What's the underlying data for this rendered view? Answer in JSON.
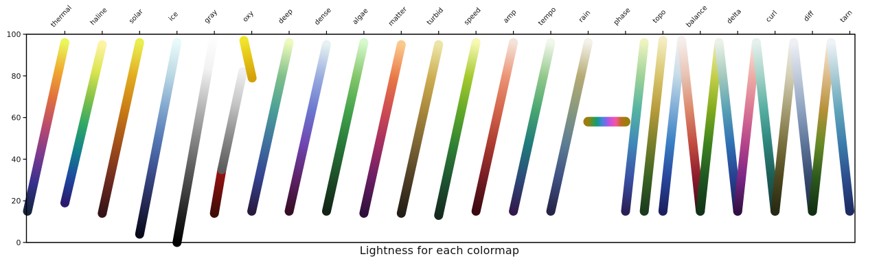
{
  "figure": {
    "title": "Lightness for each colormap"
  },
  "chart_data": {
    "type": "scatter",
    "title": "Lightness for each colormap",
    "xlabel": "",
    "ylabel": "",
    "ylim": [
      0,
      100
    ],
    "yticks": [
      0,
      20,
      40,
      60,
      80,
      100
    ],
    "grid": false,
    "legend": "none",
    "x_tick_labels_rotation_deg": 47,
    "note": "Each colormap drawn as a thick diagonal band: x spans its slot, y is lightness L*",
    "colormaps": [
      {
        "name": "thermal",
        "segments": [
          {
            "x": [
              0,
              1
            ],
            "L": [
              15,
              96
            ],
            "colors": [
              "#16253e",
              "#36318e",
              "#7a3a8e",
              "#b84a6f",
              "#e06f3f",
              "#f0a92f",
              "#e9f75b"
            ]
          }
        ]
      },
      {
        "name": "haline",
        "segments": [
          {
            "x": [
              0,
              1
            ],
            "L": [
              19,
              95
            ],
            "colors": [
              "#2a1a6e",
              "#1e4ba0",
              "#12838a",
              "#32a865",
              "#86c249",
              "#dbe64f",
              "#fdf3a5"
            ]
          }
        ]
      },
      {
        "name": "solar",
        "segments": [
          {
            "x": [
              0,
              1
            ],
            "L": [
              14,
              96
            ],
            "colors": [
              "#351317",
              "#702b20",
              "#a04f19",
              "#c87a15",
              "#e2ab20",
              "#e9ef4e"
            ]
          }
        ]
      },
      {
        "name": "ice",
        "segments": [
          {
            "x": [
              0,
              1
            ],
            "L": [
              4,
              96
            ],
            "colors": [
              "#080a1a",
              "#262a56",
              "#3d4f8e",
              "#5579b5",
              "#84a9cf",
              "#bcd9e4",
              "#e8fafa"
            ]
          }
        ]
      },
      {
        "name": "gray",
        "segments": [
          {
            "x": [
              0,
              1
            ],
            "L": [
              0,
              100
            ],
            "colors": [
              "#000000",
              "#2b2b2b",
              "#575757",
              "#878787",
              "#bcbcbc",
              "#f2f2f2",
              "#ffffff"
            ]
          }
        ]
      },
      {
        "name": "oxy",
        "segments": [
          {
            "x": [
              0,
              0.2
            ],
            "L": [
              14,
              35
            ],
            "colors": [
              "#400d06",
              "#6e0f0c",
              "#9e1410"
            ]
          },
          {
            "x": [
              0.2,
              0.76
            ],
            "L": [
              35,
              82
            ],
            "colors": [
              "#5c5c5c",
              "#8a8a8a",
              "#c4c4c4",
              "#efefef"
            ]
          },
          {
            "x": [
              0.79,
              1.01
            ],
            "L": [
              97,
              79
            ],
            "colors": [
              "#f0e52c",
              "#e3c214",
              "#d3a10b"
            ]
          }
        ]
      },
      {
        "name": "deep",
        "segments": [
          {
            "x": [
              0,
              1
            ],
            "L": [
              15,
              96
            ],
            "colors": [
              "#281a3e",
              "#35428f",
              "#40709f",
              "#4b9f98",
              "#80c08a",
              "#eefabd"
            ]
          }
        ]
      },
      {
        "name": "dense",
        "segments": [
          {
            "x": [
              0,
              1
            ],
            "L": [
              15,
              95
            ],
            "colors": [
              "#360e24",
              "#5e2268",
              "#7045b0",
              "#6b76cf",
              "#97abde",
              "#e6f1f1"
            ]
          }
        ]
      },
      {
        "name": "algae",
        "segments": [
          {
            "x": [
              0,
              1
            ],
            "L": [
              15,
              96
            ],
            "colors": [
              "#112414",
              "#1d4d28",
              "#28793a",
              "#44a44c",
              "#85c76c",
              "#d7f9cd"
            ]
          }
        ]
      },
      {
        "name": "matter",
        "segments": [
          {
            "x": [
              0,
              1
            ],
            "L": [
              14,
              95
            ],
            "colors": [
              "#2f0f3b",
              "#671e62",
              "#a02d63",
              "#cc4a52",
              "#e87747",
              "#fbc98c"
            ]
          }
        ]
      },
      {
        "name": "turbid",
        "segments": [
          {
            "x": [
              0,
              1
            ],
            "L": [
              14,
              95
            ],
            "colors": [
              "#231e16",
              "#4e3d25",
              "#7a6333",
              "#a6863c",
              "#ccad51",
              "#ece5a6"
            ]
          }
        ]
      },
      {
        "name": "speed",
        "segments": [
          {
            "x": [
              0,
              1
            ],
            "L": [
              13,
              96
            ],
            "colors": [
              "#152a1e",
              "#1d5331",
              "#2f8034",
              "#60a829",
              "#a5c92e",
              "#f7f9b2"
            ]
          }
        ]
      },
      {
        "name": "amp",
        "segments": [
          {
            "x": [
              0,
              1
            ],
            "L": [
              15,
              96
            ],
            "colors": [
              "#3c0911",
              "#761d25",
              "#ab3c30",
              "#d4654c",
              "#ec9476",
              "#f4e3da"
            ]
          }
        ]
      },
      {
        "name": "tempo",
        "segments": [
          {
            "x": [
              0,
              1
            ],
            "L": [
              15,
              96
            ],
            "colors": [
              "#31194c",
              "#2c4c7a",
              "#207b7b",
              "#48a671",
              "#93c98b",
              "#f2f7ec"
            ]
          }
        ]
      },
      {
        "name": "rain",
        "segments": [
          {
            "x": [
              0,
              1
            ],
            "L": [
              15,
              96
            ],
            "colors": [
              "#262448",
              "#3f5182",
              "#5e7d94",
              "#87997e",
              "#b6ab74",
              "#f3f1e9"
            ]
          }
        ]
      },
      {
        "name": "phase",
        "segments": [
          {
            "x": [
              0,
              1
            ],
            "L": [
              58,
              58
            ],
            "width": 14,
            "colors": [
              "#9c7d0d",
              "#44993a",
              "#11998a",
              "#4485dd",
              "#9061e8",
              "#dd4ed0",
              "#f2589a",
              "#c06a20",
              "#9c7d0d"
            ]
          }
        ]
      },
      {
        "name": "topo",
        "segments": [
          {
            "x": [
              0,
              0.5
            ],
            "L": [
              15,
              96
            ],
            "colors": [
              "#2a2058",
              "#3a51a5",
              "#4088ba",
              "#54b3a2",
              "#9ed398",
              "#eef3c0"
            ]
          },
          {
            "x": [
              0.5,
              1
            ],
            "L": [
              15,
              97
            ],
            "colors": [
              "#1b3a1e",
              "#3a6322",
              "#7a7f2a",
              "#b89c3c",
              "#d9c66e",
              "#f4edc2"
            ]
          }
        ]
      },
      {
        "name": "balance",
        "segments": [
          {
            "x": [
              0,
              0.5
            ],
            "L": [
              15,
              97
            ],
            "colors": [
              "#1c2160",
              "#28479c",
              "#3a7fc4",
              "#7eadd6",
              "#c8dce8",
              "#f2f4f5"
            ]
          },
          {
            "x": [
              0.5,
              1
            ],
            "L": [
              97,
              15
            ],
            "colors": [
              "#f5efed",
              "#e8c4b4",
              "#dc8a6d",
              "#c24e41",
              "#8c1b2c",
              "#400a16"
            ]
          }
        ]
      },
      {
        "name": "delta",
        "segments": [
          {
            "x": [
              0,
              0.5
            ],
            "L": [
              15,
              96
            ],
            "colors": [
              "#123317",
              "#1f5722",
              "#3d8220",
              "#82ab1e",
              "#c4cf4a",
              "#f0edb2"
            ]
          },
          {
            "x": [
              0.5,
              1
            ],
            "L": [
              96,
              15
            ],
            "colors": [
              "#ecf2e8",
              "#a2c9bd",
              "#57a0b4",
              "#3070b4",
              "#27408f",
              "#1b2155"
            ]
          }
        ]
      },
      {
        "name": "curl",
        "segments": [
          {
            "x": [
              0,
              0.5
            ],
            "L": [
              15,
              96
            ],
            "colors": [
              "#331044",
              "#7c2786",
              "#b4448a",
              "#da7595",
              "#eeaca6",
              "#f8ece2"
            ]
          },
          {
            "x": [
              0.5,
              1
            ],
            "L": [
              96,
              15
            ],
            "colors": [
              "#e6f0ee",
              "#a2d2c6",
              "#55aca0",
              "#2d847c",
              "#1d5d54",
              "#163a3c"
            ]
          }
        ]
      },
      {
        "name": "diff",
        "segments": [
          {
            "x": [
              0,
              0.5
            ],
            "L": [
              15,
              96
            ],
            "colors": [
              "#262a13",
              "#4d471f",
              "#79703f",
              "#a59d72",
              "#d3cfb6",
              "#f1f0ea"
            ]
          },
          {
            "x": [
              0.5,
              1
            ],
            "L": [
              96,
              15
            ],
            "colors": [
              "#eef0f4",
              "#c0cadb",
              "#8da2bf",
              "#5d7599",
              "#374a6e",
              "#202e44"
            ]
          }
        ]
      },
      {
        "name": "tarn",
        "segments": [
          {
            "x": [
              0,
              0.5
            ],
            "L": [
              15,
              96
            ],
            "colors": [
              "#132f13",
              "#2d5a1d",
              "#678a26",
              "#b69139",
              "#ddbb88",
              "#f7efe4"
            ]
          },
          {
            "x": [
              0.5,
              1
            ],
            "L": [
              96,
              15
            ],
            "colors": [
              "#eff3f6",
              "#a8cbd5",
              "#61a5bb",
              "#3b7cab",
              "#2d4e8e",
              "#1d2c62"
            ]
          }
        ]
      }
    ]
  }
}
